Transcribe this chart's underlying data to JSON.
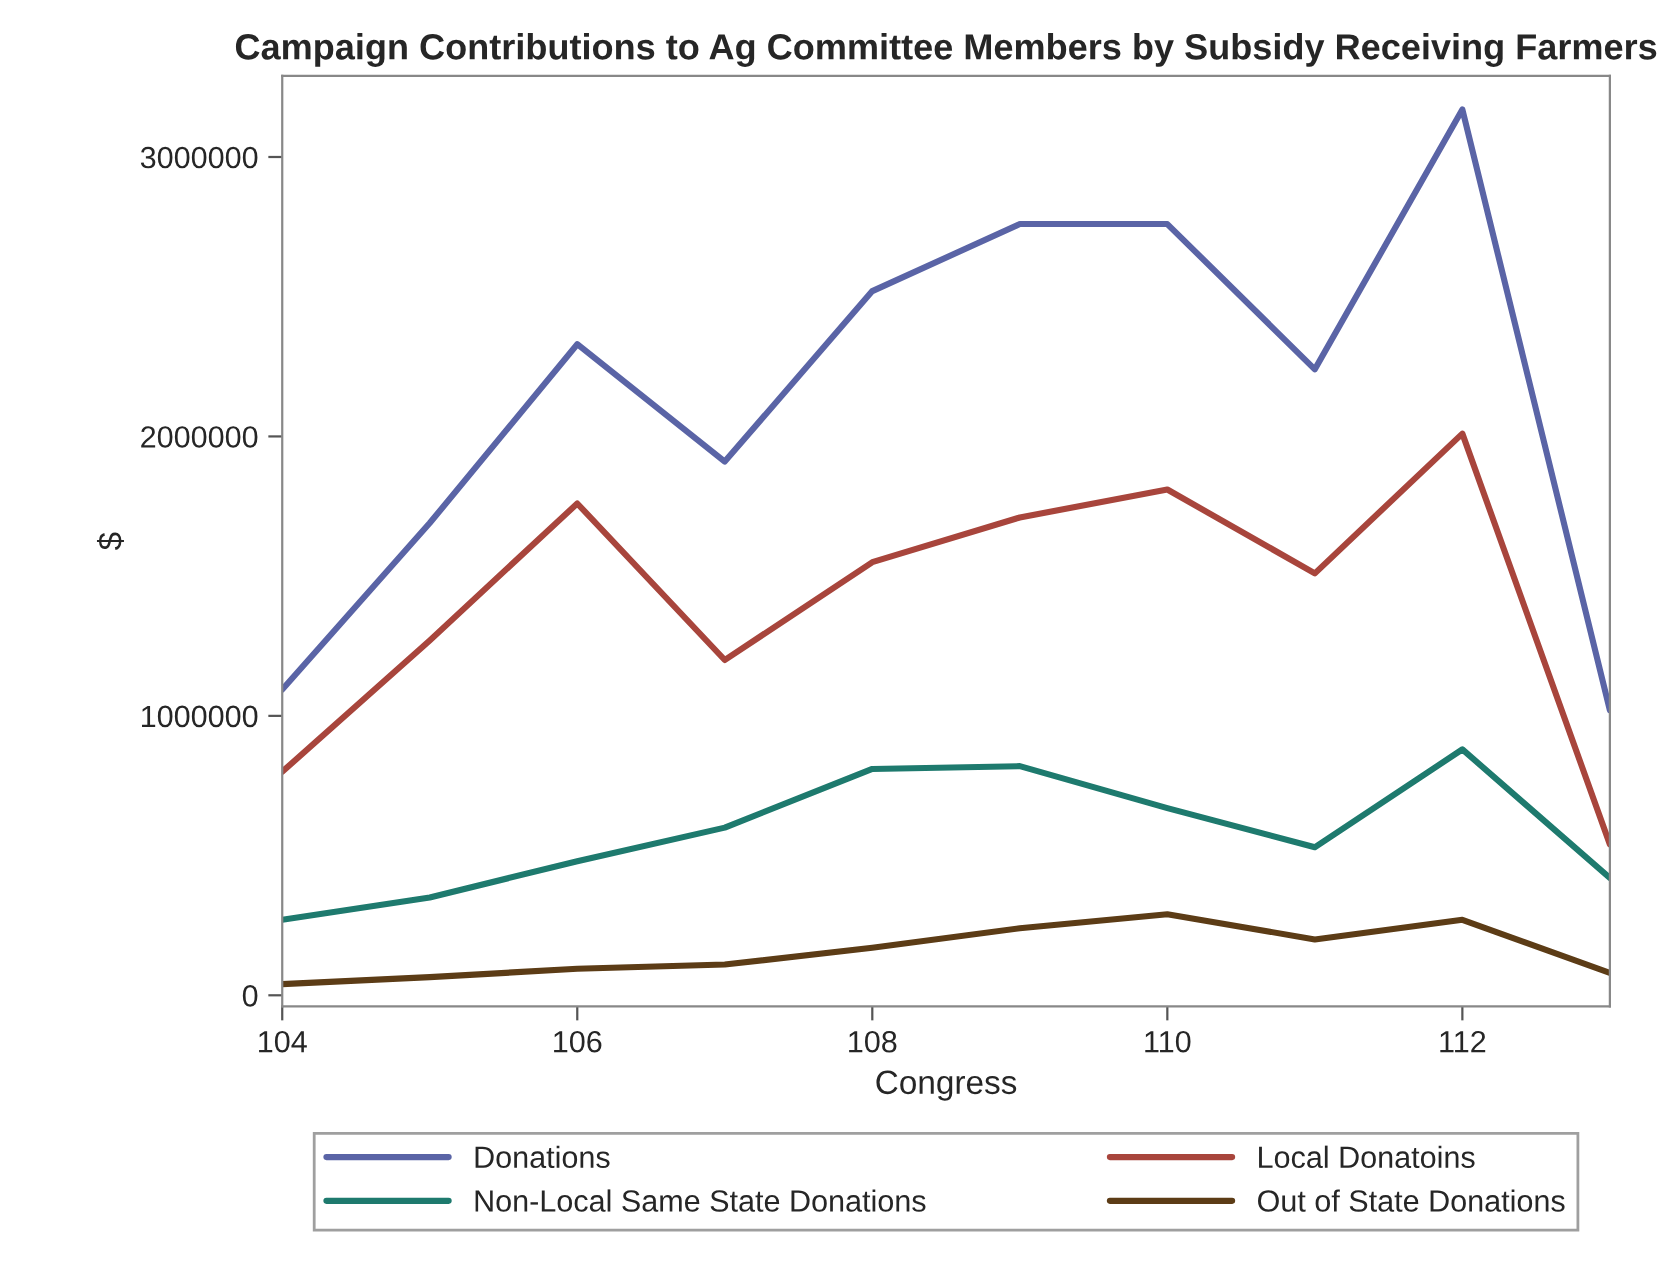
{
  "chart_data": {
    "type": "line",
    "title": "Campaign Contributions to Ag Committee Members by Subsidy Receiving Farmers",
    "xlabel": "Congress",
    "ylabel": "$",
    "x": [
      104,
      105,
      106,
      107,
      108,
      109,
      110,
      111,
      112,
      113
    ],
    "series": [
      {
        "name": "Donations",
        "color": "#5a64a6",
        "values": [
          1094000,
          1690000,
          2330000,
          1910000,
          2520000,
          2760000,
          2760000,
          2240000,
          3170000,
          1020000
        ]
      },
      {
        "name": "Local Donatoins",
        "color": "#a8453c",
        "values": [
          800000,
          1270000,
          1760000,
          1200000,
          1550000,
          1710000,
          1810000,
          1510000,
          2010000,
          540000
        ]
      },
      {
        "name": "Non-Local Same State Donations",
        "color": "#1e7a6e",
        "values": [
          270000,
          350000,
          480000,
          600000,
          810000,
          820000,
          670000,
          530000,
          880000,
          420000
        ]
      },
      {
        "name": "Out of State Donations",
        "color": "#5c3c16",
        "values": [
          40000,
          65000,
          95000,
          110000,
          170000,
          240000,
          290000,
          200000,
          270000,
          80000
        ]
      }
    ],
    "xlim": [
      104,
      113
    ],
    "xticks": [
      104,
      106,
      108,
      110,
      112
    ],
    "ylim": [
      -40000,
      3290000
    ],
    "yticks": [
      0,
      1000000,
      2000000,
      3000000
    ],
    "grid": false,
    "legend": "bottom",
    "marker": "none",
    "line_style": "solid"
  }
}
